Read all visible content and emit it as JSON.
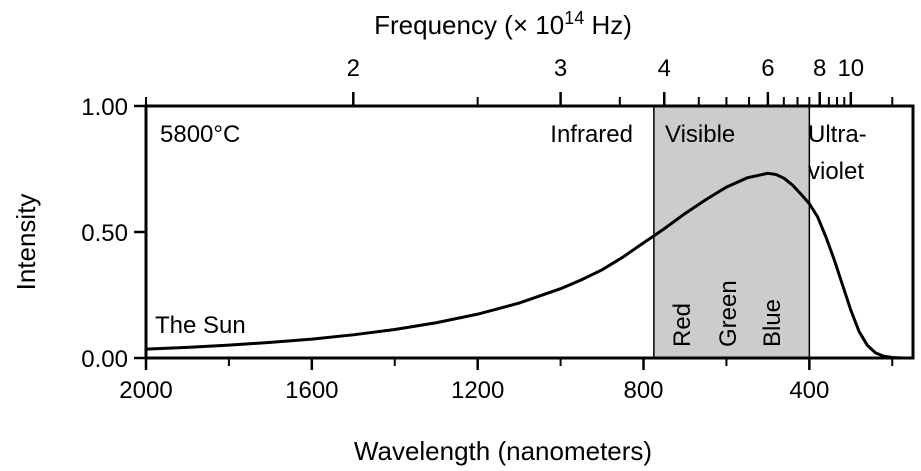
{
  "chart_data": {
    "type": "line",
    "title": "",
    "xlabel": "Wavelength (nanometers)",
    "x_reversed": true,
    "xlim": [
      2000,
      150
    ],
    "ylabel": "Intensity",
    "ylim": [
      0,
      1
    ],
    "x_ticks": [
      2000,
      1600,
      1200,
      800,
      400
    ],
    "x_tick_labels": [
      "2000",
      "1600",
      "1200",
      "800",
      "400"
    ],
    "x_minor_ticks": [
      1800,
      1400,
      1000,
      600,
      200
    ],
    "y_ticks": [
      0,
      0.5,
      1
    ],
    "y_tick_labels": [
      "0.00",
      "0.50",
      "1.00"
    ],
    "top_axis": {
      "label_prefix": "Frequency (",
      "label_times": "×",
      "label_base": " 10",
      "label_exp": "14",
      "label_suffix": " Hz)",
      "ticks": [
        1.5,
        2,
        2.5,
        3,
        3.5,
        4,
        4.5,
        5,
        5.5,
        6,
        6.5,
        7,
        7.5,
        8,
        8.5,
        9,
        9.5,
        10,
        15
      ],
      "labeled_ticks": [
        2,
        3,
        4,
        6,
        8,
        10
      ],
      "tick_labels": [
        "2",
        "3",
        "4",
        "6",
        "8",
        "10"
      ]
    },
    "series": [
      {
        "x": [
          2000,
          1900,
          1800,
          1700,
          1600,
          1500,
          1400,
          1300,
          1200,
          1100,
          1000,
          950,
          900,
          850,
          800,
          750,
          700,
          650,
          600,
          550,
          500,
          480,
          460,
          440,
          420,
          400,
          380,
          360,
          340,
          320,
          300,
          280,
          260,
          240,
          220,
          200,
          180,
          160,
          150
        ],
        "y": [
          0.035,
          0.042,
          0.051,
          0.062,
          0.075,
          0.092,
          0.113,
          0.14,
          0.174,
          0.218,
          0.275,
          0.31,
          0.35,
          0.4,
          0.457,
          0.513,
          0.573,
          0.628,
          0.678,
          0.715,
          0.733,
          0.728,
          0.712,
          0.685,
          0.65,
          0.612,
          0.56,
          0.48,
          0.39,
          0.29,
          0.19,
          0.105,
          0.05,
          0.02,
          0.007,
          0.002,
          0.0005,
          0.0001,
          0.0
        ]
      }
    ],
    "visible_band": [
      775,
      400
    ],
    "band_color": "#cccccc",
    "line_color": "#000000",
    "annotations": {
      "temperature": "5800°C",
      "object": "The Sun",
      "infrared": "Infrared",
      "visible": "Visible",
      "ultraviolet_line1": "Ultra-",
      "ultraviolet_line2": "violet",
      "red": "Red",
      "green": "Green",
      "blue": "Blue"
    }
  }
}
